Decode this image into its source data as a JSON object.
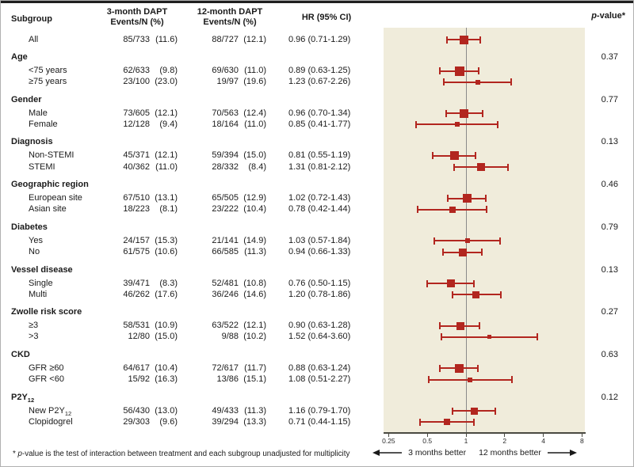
{
  "figure": {
    "header": {
      "subgroup": "Subgroup",
      "col3_line1": "3-month DAPT",
      "col3_line2": "Events/N (%)",
      "col12_line1": "12-month DAPT",
      "col12_line2": "Events/N (%)",
      "hr": "HR (95% CI)",
      "p_italic": "p",
      "p_rest": "-value*"
    },
    "footnote": {
      "star": "* ",
      "p": "p",
      "rest": "-value is the test of interaction between treatment and each subgroup unadjusted for multiplicity"
    },
    "axis_arrows": {
      "left_label": "3 months better",
      "right_label": "12 months better"
    },
    "colors": {
      "marker": "#b2261f",
      "plot_bg": "#f0ecdb",
      "ref_line": "#8a8a8a",
      "top_rule": "#1f1f1f",
      "border": "#b0b0b0"
    }
  },
  "chart_data": {
    "type": "forest",
    "x_scale": "log2",
    "x_ticks": [
      0.25,
      0.5,
      1,
      2,
      4,
      8
    ],
    "x_tick_labels": [
      "0.25",
      "0.5",
      "1",
      "2",
      "4",
      "8"
    ],
    "reference_value": 1,
    "better_left": "3 months better",
    "better_right": "12 months better",
    "rows": [
      {
        "type": "item",
        "label": "All",
        "e3": "85/733",
        "p3": "(11.6)",
        "e12": "88/727",
        "p12": "(12.1)",
        "hr": 0.96,
        "lo": 0.71,
        "hi": 1.29,
        "hr_text": "0.96 (0.71-1.29)",
        "m": 11
      },
      {
        "type": "group",
        "label": "Age",
        "p": "0.37"
      },
      {
        "type": "item",
        "label": "<75 years",
        "e3": "62/633",
        "p3": "(9.8)",
        "e12": "69/630",
        "p12": "(11.0)",
        "hr": 0.89,
        "lo": 0.63,
        "hi": 1.25,
        "hr_text": "0.89 (0.63-1.25)",
        "m": 12
      },
      {
        "type": "item",
        "label": "≥75 years",
        "e3": "23/100",
        "p3": "(23.0)",
        "e12": "19/97",
        "p12": "(19.6)",
        "hr": 1.23,
        "lo": 0.67,
        "hi": 2.26,
        "hr_text": "1.23 (0.67-2.26)",
        "m": 6
      },
      {
        "type": "group",
        "label": "Gender",
        "p": "0.77"
      },
      {
        "type": "item",
        "label": "Male",
        "e3": "73/605",
        "p3": "(12.1)",
        "e12": "70/563",
        "p12": "(12.4)",
        "hr": 0.96,
        "lo": 0.7,
        "hi": 1.34,
        "hr_text": "0.96 (0.70-1.34)",
        "m": 11
      },
      {
        "type": "item",
        "label": "Female",
        "e3": "12/128",
        "p3": "(9.4)",
        "e12": "18/164",
        "p12": "(11.0)",
        "hr": 0.85,
        "lo": 0.41,
        "hi": 1.77,
        "hr_text": "0.85 (0.41-1.77)",
        "m": 6
      },
      {
        "type": "group",
        "label": "Diagnosis",
        "p": "0.13"
      },
      {
        "type": "item",
        "label": "Non-STEMI",
        "e3": "45/371",
        "p3": "(12.1)",
        "e12": "59/394",
        "p12": "(15.0)",
        "hr": 0.81,
        "lo": 0.55,
        "hi": 1.19,
        "hr_text": "0.81 (0.55-1.19)",
        "m": 11
      },
      {
        "type": "item",
        "label": "STEMI",
        "e3": "40/362",
        "p3": "(11.0)",
        "e12": "28/332",
        "p12": "(8.4)",
        "hr": 1.31,
        "lo": 0.81,
        "hi": 2.12,
        "hr_text": "1.31 (0.81-2.12)",
        "m": 10
      },
      {
        "type": "group",
        "label": "Geographic region",
        "p": "0.46"
      },
      {
        "type": "item",
        "label": "European site",
        "e3": "67/510",
        "p3": "(13.1)",
        "e12": "65/505",
        "p12": "(12.9)",
        "hr": 1.02,
        "lo": 0.72,
        "hi": 1.43,
        "hr_text": "1.02 (0.72-1.43)",
        "m": 11
      },
      {
        "type": "item",
        "label": "Asian site",
        "e3": "18/223",
        "p3": "(8.1)",
        "e12": "23/222",
        "p12": "(10.4)",
        "hr": 0.78,
        "lo": 0.42,
        "hi": 1.44,
        "hr_text": "0.78 (0.42-1.44)",
        "m": 8
      },
      {
        "type": "group",
        "label": "Diabetes",
        "p": "0.79"
      },
      {
        "type": "item",
        "label": "Yes",
        "e3": "24/157",
        "p3": "(15.3)",
        "e12": "21/141",
        "p12": "(14.9)",
        "hr": 1.03,
        "lo": 0.57,
        "hi": 1.84,
        "hr_text": "1.03 (0.57-1.84)",
        "m": 6
      },
      {
        "type": "item",
        "label": "No",
        "e3": "61/575",
        "p3": "(10.6)",
        "e12": "66/585",
        "p12": "(11.3)",
        "hr": 0.94,
        "lo": 0.66,
        "hi": 1.33,
        "hr_text": "0.94 (0.66-1.33)",
        "m": 10
      },
      {
        "type": "group",
        "label": "Vessel disease",
        "p": "0.13"
      },
      {
        "type": "item",
        "label": "Single",
        "e3": "39/471",
        "p3": "(8.3)",
        "e12": "52/481",
        "p12": "(10.8)",
        "hr": 0.76,
        "lo": 0.5,
        "hi": 1.15,
        "hr_text": "0.76 (0.50-1.15)",
        "m": 10
      },
      {
        "type": "item",
        "label": "Multi",
        "e3": "46/262",
        "p3": "(17.6)",
        "e12": "36/246",
        "p12": "(14.6)",
        "hr": 1.2,
        "lo": 0.78,
        "hi": 1.86,
        "hr_text": "1.20 (0.78-1.86)",
        "m": 9
      },
      {
        "type": "group",
        "label": "Zwolle risk score",
        "p": "0.27"
      },
      {
        "type": "item",
        "label": "≥3",
        "e3": "58/531",
        "p3": "(10.9)",
        "e12": "63/522",
        "p12": "(12.1)",
        "hr": 0.9,
        "lo": 0.63,
        "hi": 1.28,
        "hr_text": "0.90 (0.63-1.28)",
        "m": 10
      },
      {
        "type": "item",
        "label": ">3",
        "e3": "12/80",
        "p3": "(15.0)",
        "e12": "9/88",
        "p12": "(10.2)",
        "hr": 1.52,
        "lo": 0.64,
        "hi": 3.6,
        "hr_text": "1.52 (0.64-3.60)",
        "m": 5
      },
      {
        "type": "group",
        "label": "CKD",
        "p": "0.63"
      },
      {
        "type": "item",
        "label": "GFR ≥60",
        "e3": "64/617",
        "p3": "(10.4)",
        "e12": "72/617",
        "p12": "(11.7)",
        "hr": 0.88,
        "lo": 0.63,
        "hi": 1.24,
        "hr_text": "0.88 (0.63-1.24)",
        "m": 11
      },
      {
        "type": "item",
        "label": "GFR <60",
        "e3": "15/92",
        "p3": "(16.3)",
        "e12": "13/86",
        "p12": "(15.1)",
        "hr": 1.08,
        "lo": 0.51,
        "hi": 2.27,
        "hr_text": "1.08 (0.51-2.27)",
        "m": 6
      },
      {
        "type": "group",
        "label": "P2Y",
        "sub": "12",
        "p": "0.12"
      },
      {
        "type": "item",
        "label": "New P2Y",
        "sub": "12",
        "e3": "56/430",
        "p3": "(13.0)",
        "e12": "49/433",
        "p12": "(11.3)",
        "hr": 1.16,
        "lo": 0.79,
        "hi": 1.7,
        "hr_text": "1.16 (0.79-1.70)",
        "m": 9
      },
      {
        "type": "item",
        "label": "Clopidogrel",
        "e3": "29/303",
        "p3": "(9.6)",
        "e12": "39/294",
        "p12": "(13.3)",
        "hr": 0.71,
        "lo": 0.44,
        "hi": 1.15,
        "hr_text": "0.71 (0.44-1.15)",
        "m": 8
      }
    ]
  }
}
